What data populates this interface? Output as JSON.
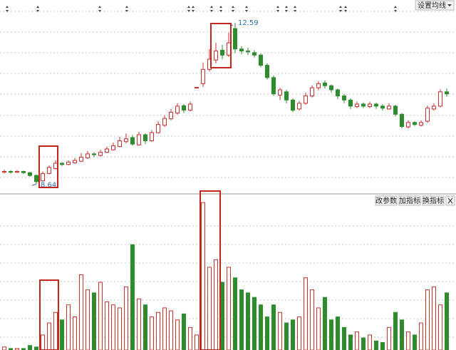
{
  "chart_data": {
    "type": "candlestick",
    "candles": [
      [
        8.93,
        8.99,
        8.9,
        8.95
      ],
      [
        8.95,
        8.98,
        8.9,
        8.93
      ],
      [
        8.93,
        8.98,
        8.91,
        8.95
      ],
      [
        8.95,
        8.97,
        8.89,
        8.92
      ],
      [
        8.92,
        8.94,
        8.82,
        8.85
      ],
      [
        8.85,
        8.88,
        8.64,
        8.7
      ],
      [
        8.72,
        8.95,
        8.7,
        8.9
      ],
      [
        8.9,
        9.1,
        8.88,
        9.05
      ],
      [
        9.02,
        9.22,
        9.0,
        9.15
      ],
      [
        9.15,
        9.18,
        9.08,
        9.12
      ],
      [
        9.12,
        9.22,
        9.1,
        9.18
      ],
      [
        9.16,
        9.28,
        9.14,
        9.22
      ],
      [
        9.2,
        9.4,
        9.18,
        9.3
      ],
      [
        9.28,
        9.45,
        9.26,
        9.38
      ],
      [
        9.38,
        9.42,
        9.3,
        9.36
      ],
      [
        9.34,
        9.48,
        9.32,
        9.42
      ],
      [
        9.42,
        9.56,
        9.4,
        9.5
      ],
      [
        9.48,
        9.66,
        9.46,
        9.58
      ],
      [
        9.56,
        9.8,
        9.54,
        9.7
      ],
      [
        9.68,
        9.88,
        9.64,
        9.75
      ],
      [
        9.78,
        9.84,
        9.58,
        9.62
      ],
      [
        9.6,
        9.92,
        9.58,
        9.85
      ],
      [
        9.85,
        9.88,
        9.62,
        9.7
      ],
      [
        9.7,
        9.96,
        9.68,
        9.9
      ],
      [
        9.9,
        10.18,
        9.88,
        10.1
      ],
      [
        10.08,
        10.32,
        10.04,
        10.25
      ],
      [
        10.24,
        10.48,
        10.2,
        10.4
      ],
      [
        10.38,
        10.62,
        10.34,
        10.55
      ],
      [
        10.56,
        10.6,
        10.38,
        10.45
      ],
      [
        10.45,
        10.66,
        10.42,
        10.6
      ],
      [
        11.0,
        11.02,
        10.98,
        11.01
      ],
      [
        11.1,
        11.62,
        11.02,
        11.45
      ],
      [
        11.45,
        11.95,
        11.4,
        11.7
      ],
      [
        11.68,
        12.1,
        11.6,
        11.9
      ],
      [
        11.92,
        12.05,
        11.7,
        11.8
      ],
      [
        11.8,
        12.35,
        11.75,
        12.1
      ],
      [
        12.45,
        12.59,
        11.85,
        11.95
      ],
      [
        11.95,
        12.02,
        11.82,
        11.9
      ],
      [
        11.9,
        11.98,
        11.8,
        11.88
      ],
      [
        11.86,
        11.92,
        11.74,
        11.8
      ],
      [
        11.8,
        11.84,
        11.5,
        11.55
      ],
      [
        11.55,
        11.6,
        11.2,
        11.25
      ],
      [
        11.25,
        11.3,
        10.8,
        10.85
      ],
      [
        10.82,
        11.0,
        10.7,
        10.95
      ],
      [
        10.9,
        10.95,
        10.62,
        10.7
      ],
      [
        10.7,
        10.74,
        10.4,
        10.45
      ],
      [
        10.48,
        10.68,
        10.44,
        10.62
      ],
      [
        10.62,
        10.88,
        10.58,
        10.8
      ],
      [
        10.8,
        11.06,
        10.76,
        11.0
      ],
      [
        11.0,
        11.16,
        10.94,
        11.1
      ],
      [
        11.12,
        11.18,
        10.98,
        11.05
      ],
      [
        11.05,
        11.08,
        10.88,
        10.95
      ],
      [
        10.95,
        10.98,
        10.72,
        10.8
      ],
      [
        10.8,
        10.85,
        10.62,
        10.7
      ],
      [
        10.7,
        10.74,
        10.48,
        10.55
      ],
      [
        10.54,
        10.66,
        10.5,
        10.6
      ],
      [
        10.6,
        10.64,
        10.5,
        10.55
      ],
      [
        10.54,
        10.66,
        10.5,
        10.6
      ],
      [
        10.6,
        10.64,
        10.48,
        10.55
      ],
      [
        10.55,
        10.6,
        10.44,
        10.5
      ],
      [
        10.48,
        10.62,
        10.46,
        10.55
      ],
      [
        10.55,
        10.58,
        10.3,
        10.35
      ],
      [
        10.35,
        10.38,
        10.0,
        10.05
      ],
      [
        10.04,
        10.2,
        10.0,
        10.15
      ],
      [
        10.15,
        10.18,
        10.06,
        10.1
      ],
      [
        10.08,
        10.2,
        10.05,
        10.15
      ],
      [
        10.18,
        10.56,
        10.14,
        10.5
      ],
      [
        10.48,
        10.62,
        10.44,
        10.55
      ],
      [
        10.55,
        10.96,
        10.52,
        10.9
      ],
      [
        10.9,
        10.98,
        10.78,
        10.85
      ]
    ],
    "volume": [
      2,
      1,
      1,
      1,
      3,
      2,
      10,
      18,
      25,
      20,
      30,
      22,
      50,
      40,
      38,
      45,
      32,
      30,
      28,
      42,
      70,
      34,
      30,
      22,
      25,
      28,
      26,
      20,
      24,
      15,
      10,
      98,
      55,
      60,
      45,
      55,
      48,
      40,
      38,
      35,
      30,
      22,
      30,
      25,
      18,
      20,
      22,
      48,
      40,
      28,
      35,
      20,
      22,
      15,
      10,
      12,
      8,
      10,
      6,
      5,
      15,
      25,
      20,
      12,
      10,
      18,
      40,
      42,
      30,
      38
    ],
    "ylim": [
      8.4,
      13.15
    ],
    "volume_ylim": [
      0,
      100
    ],
    "up_color": "#c8312d",
    "down_color": "#2e8b2e",
    "max_label": 12.59,
    "min_label": 8.64,
    "toolbar": {
      "ma_button": "设置均线",
      "buttons": [
        "改参数",
        "加指标",
        "换指标"
      ]
    }
  }
}
